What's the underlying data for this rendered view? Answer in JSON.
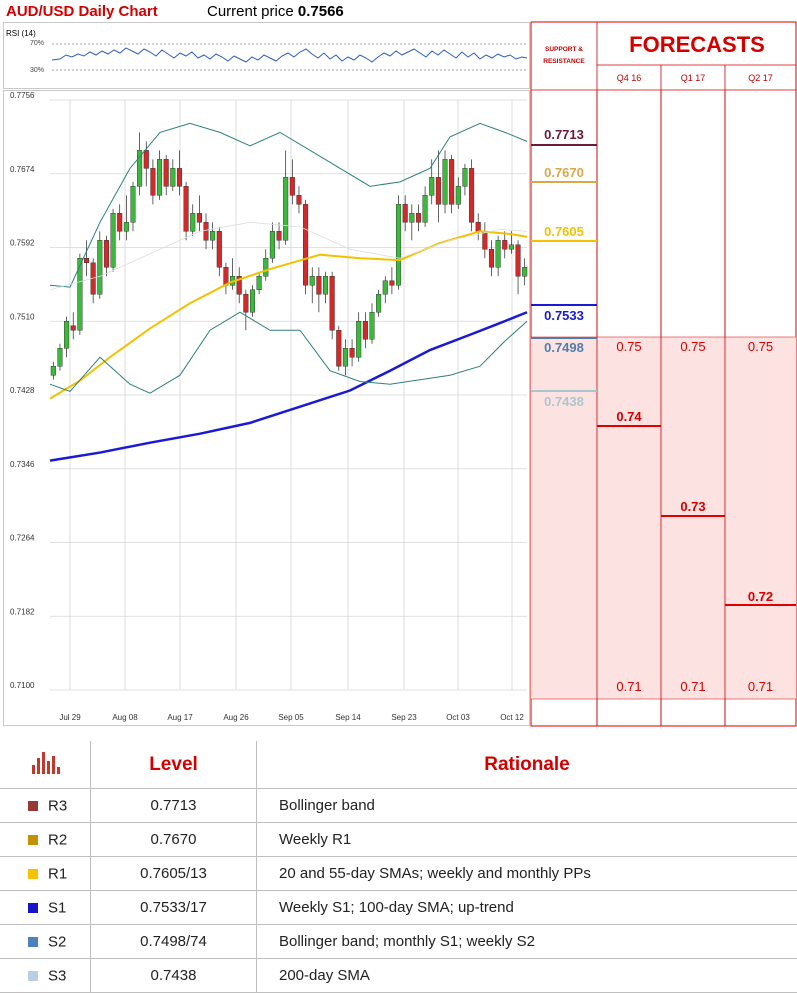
{
  "header": {
    "title": "AUD/USD Daily Chart",
    "price_label": "Current price",
    "price_value": "0.7566"
  },
  "rsi": {
    "label": "RSI (14)",
    "upper": "70%",
    "lower": "30%"
  },
  "chart_data": {
    "type": "candlestick",
    "y_ticks": [
      "0.7756",
      "0.7674",
      "0.7592",
      "0.7510",
      "0.7428",
      "0.7346",
      "0.7264",
      "0.7182",
      "0.7100"
    ],
    "x_ticks": [
      "Jul 29",
      "Aug 08",
      "Aug 17",
      "Aug 26",
      "Sep 05",
      "Sep 14",
      "Sep 23",
      "Oct 03",
      "Oct 12"
    ],
    "ylim": [
      0.71,
      0.7756
    ],
    "lines": [
      {
        "name": "55-day SMA",
        "color": "#f2c200"
      },
      {
        "name": "100-day SMA",
        "color": "#1a1ad6"
      },
      {
        "name": "Bollinger band",
        "color": "#2f7f7f"
      }
    ],
    "support_resistance": [
      {
        "value": "0.7713",
        "color": "#6b1b3a"
      },
      {
        "value": "0.7670",
        "color": "#d9a84a"
      },
      {
        "value": "0.7605",
        "color": "#f2c200"
      },
      {
        "value": "0.7533",
        "color": "#1a1ad6"
      },
      {
        "value": "0.7498",
        "color": "#4f7fa8"
      },
      {
        "value": "0.7438",
        "color": "#a9c7cf"
      }
    ]
  },
  "forecasts": {
    "title": "FORECASTS",
    "sr_heading": [
      "SUPPORT &",
      "RESISTANCE"
    ],
    "quarters": [
      "Q4 16",
      "Q1 17",
      "Q2 17"
    ],
    "top": [
      "0.75",
      "0.75",
      "0.75"
    ],
    "mid": [
      "0.74",
      "0.73",
      "0.72"
    ],
    "bottom": [
      "0.71",
      "0.71",
      "0.71"
    ]
  },
  "table": {
    "icon": "bar-chart-icon",
    "headers": [
      "Level",
      "Rationale"
    ],
    "rows": [
      {
        "name": "R3",
        "level": "0.7713",
        "rationale": "Bollinger band",
        "color": "#953735"
      },
      {
        "name": "R2",
        "level": "0.7670",
        "rationale": "Weekly R1",
        "color": "#c39200"
      },
      {
        "name": "R1",
        "level": "0.7605/13",
        "rationale": "20 and 55-day SMAs; weekly and monthly PPs",
        "color": "#f5c200"
      },
      {
        "name": "S1",
        "level": "0.7533/17",
        "rationale": "Weekly S1; 100-day SMA; up-trend",
        "color": "#1414c8"
      },
      {
        "name": "S2",
        "level": "0.7498/74",
        "rationale": "Bollinger band; monthly S1; weekly S2",
        "color": "#4f81bd"
      },
      {
        "name": "S3",
        "level": "0.7438",
        "rationale": "200-day SMA",
        "color": "#b9cde5"
      }
    ]
  }
}
